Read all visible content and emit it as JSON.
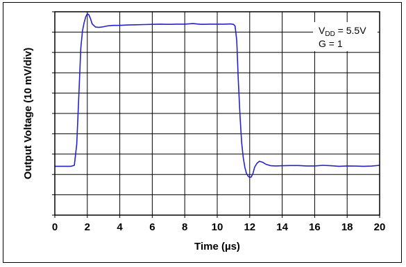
{
  "chart_data": {
    "type": "line",
    "title": "",
    "xlabel": "Time (µs)",
    "ylabel": "Output Voltage (10 mV/div)",
    "xlim": [
      0,
      20
    ],
    "ylim": [
      0,
      10
    ],
    "x_ticks": [
      0,
      2,
      4,
      6,
      8,
      10,
      12,
      14,
      16,
      18,
      20
    ],
    "x_tick_labels": [
      "0",
      "2",
      "4",
      "6",
      "8",
      "10",
      "12",
      "14",
      "16",
      "18",
      "20"
    ],
    "y_unit": "div",
    "grid": true,
    "legend": "none",
    "annotations": {
      "vdd_main": "V",
      "vdd_sub": "DD",
      "vdd_rest": " = 5.5V",
      "gain": "G = 1"
    },
    "series": [
      {
        "color": "#2323c8",
        "x": [
          0,
          0.5,
          1.0,
          1.2,
          1.35,
          1.5,
          1.6,
          1.7,
          1.8,
          1.9,
          2.0,
          2.1,
          2.2,
          2.3,
          2.5,
          2.7,
          2.9,
          3.2,
          3.6,
          4.0,
          4.5,
          5.0,
          5.5,
          6.0,
          6.5,
          7.0,
          7.5,
          8.0,
          8.5,
          9.0,
          9.5,
          10.0,
          10.5,
          10.8,
          11.0,
          11.1,
          11.2,
          11.3,
          11.4,
          11.5,
          11.6,
          11.7,
          11.8,
          11.9,
          12.0,
          12.1,
          12.2,
          12.3,
          12.45,
          12.6,
          12.8,
          13.0,
          13.3,
          13.6,
          14.0,
          14.5,
          15.0,
          15.5,
          16.0,
          16.5,
          17.0,
          17.5,
          18.0,
          18.5,
          19.0,
          19.5,
          20.0
        ],
        "y": [
          2.4,
          2.4,
          2.4,
          2.45,
          3.5,
          6.3,
          8.2,
          9.05,
          9.45,
          9.75,
          9.9,
          9.85,
          9.65,
          9.4,
          9.25,
          9.23,
          9.25,
          9.3,
          9.33,
          9.33,
          9.35,
          9.36,
          9.37,
          9.38,
          9.39,
          9.38,
          9.39,
          9.39,
          9.42,
          9.38,
          9.39,
          9.39,
          9.39,
          9.4,
          9.38,
          9.3,
          8.6,
          6.6,
          4.9,
          3.6,
          2.85,
          2.35,
          2.05,
          1.92,
          1.85,
          1.88,
          2.05,
          2.35,
          2.55,
          2.65,
          2.6,
          2.5,
          2.43,
          2.42,
          2.43,
          2.44,
          2.44,
          2.42,
          2.42,
          2.45,
          2.43,
          2.4,
          2.42,
          2.41,
          2.4,
          2.41,
          2.45
        ]
      }
    ]
  }
}
